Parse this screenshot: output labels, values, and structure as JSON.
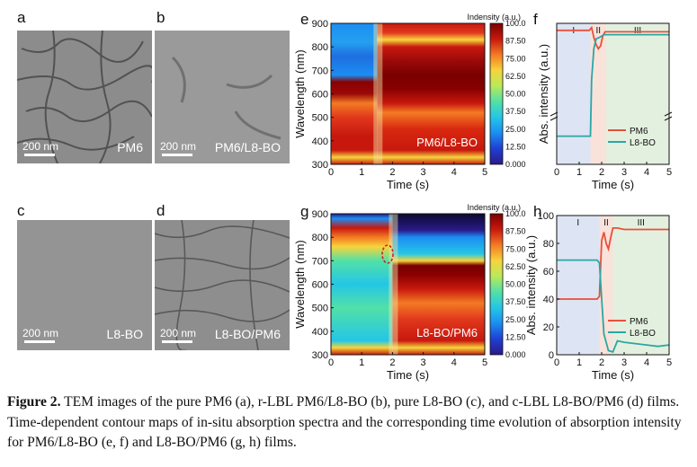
{
  "panels": {
    "a": {
      "letter": "a",
      "label": "PM6",
      "scale": "200 nm"
    },
    "b": {
      "letter": "b",
      "label": "PM6/L8-BO",
      "scale": "200 nm"
    },
    "c": {
      "letter": "c",
      "label": "L8-BO",
      "scale": "200 nm"
    },
    "d": {
      "letter": "d",
      "label": "L8-BO/PM6",
      "scale": "200 nm"
    },
    "e": {
      "letter": "e"
    },
    "f": {
      "letter": "f"
    },
    "g": {
      "letter": "g"
    },
    "h": {
      "letter": "h"
    }
  },
  "caption": {
    "figure_label": "Figure 2.",
    "text": " TEM images of the pure PM6 (a), r-LBL PM6/L8-BO (b), pure L8-BO (c), and c-LBL L8-BO/PM6 (d) films. Time-dependent contour maps of in-situ absorption spectra and the corresponding time evolution of absorption intensity for PM6/L8-BO (e, f) and L8-BO/PM6 (g, h) films."
  },
  "chart_data": [
    {
      "id": "e",
      "type": "heatmap",
      "title": "PM6/L8-BO",
      "xlabel": "Time (s)",
      "ylabel": "Wavelength (nm)",
      "xlim": [
        0,
        5
      ],
      "ylim": [
        300,
        900
      ],
      "xticks": [
        "0",
        "1",
        "2",
        "3",
        "4",
        "5"
      ],
      "yticks": [
        "300",
        "400",
        "500",
        "600",
        "700",
        "800",
        "900"
      ],
      "colorbar_label": "Indensity (a.u.)",
      "colorbar_ticks": [
        "0.000",
        "12.50",
        "25.00",
        "37.50",
        "50.00",
        "62.50",
        "75.00",
        "87.50",
        "100.0"
      ],
      "transition_time": 1.5
    },
    {
      "id": "f",
      "type": "line",
      "xlabel": "Time (s)",
      "ylabel": "Abs. intensity (a.u.)",
      "xlim": [
        0,
        5
      ],
      "xticks": [
        "0",
        "1",
        "2",
        "3",
        "4",
        "5"
      ],
      "regions": [
        {
          "label": "I",
          "start": 0,
          "end": 1.5,
          "color": "#dde4f3"
        },
        {
          "label": "II",
          "start": 1.5,
          "end": 2.2,
          "color": "#f8e2da"
        },
        {
          "label": "III",
          "start": 2.2,
          "end": 5,
          "color": "#e4f0df"
        }
      ],
      "series": [
        {
          "name": "PM6",
          "color": "#e8503a",
          "x": [
            0,
            1.45,
            1.55,
            1.65,
            1.75,
            1.85,
            1.95,
            2.05,
            2.15,
            2.4,
            3,
            4,
            5
          ],
          "y": [
            95,
            95,
            97,
            90,
            85,
            82,
            84,
            91,
            94,
            94,
            94,
            94,
            94
          ]
        },
        {
          "name": "L8-BO",
          "color": "#2aa7a5",
          "x": [
            0,
            1.5,
            1.55,
            1.65,
            1.75,
            1.9,
            2.0,
            2.1,
            2.3,
            3,
            4,
            5
          ],
          "y": [
            20,
            20,
            60,
            82,
            89,
            90,
            91,
            92,
            92,
            92,
            92,
            92
          ]
        }
      ]
    },
    {
      "id": "g",
      "type": "heatmap",
      "title": "L8-BO/PM6",
      "xlabel": "Time (s)",
      "ylabel": "Wavelength (nm)",
      "xlim": [
        0,
        5
      ],
      "ylim": [
        300,
        900
      ],
      "xticks": [
        "0",
        "1",
        "2",
        "3",
        "4",
        "5"
      ],
      "yticks": [
        "300",
        "400",
        "500",
        "600",
        "700",
        "800",
        "900"
      ],
      "colorbar_label": "Indensity (a.u.)",
      "colorbar_ticks": [
        "0.000",
        "12.50",
        "25.00",
        "37.50",
        "50.00",
        "62.50",
        "75.00",
        "87.50",
        "100.0"
      ],
      "transition_time": 2.0
    },
    {
      "id": "h",
      "type": "line",
      "xlabel": "Time (s)",
      "ylabel": "Abs. intensity (a.u.)",
      "xlim": [
        0,
        5
      ],
      "ylim": [
        0,
        100
      ],
      "xticks": [
        "0",
        "1",
        "2",
        "3",
        "4",
        "5"
      ],
      "yticks": [
        "0",
        "20",
        "40",
        "60",
        "80",
        "100"
      ],
      "regions": [
        {
          "label": "I",
          "start": 0,
          "end": 1.9,
          "color": "#dde4f3"
        },
        {
          "label": "II",
          "start": 1.9,
          "end": 2.5,
          "color": "#f8e2da"
        },
        {
          "label": "III",
          "start": 2.5,
          "end": 5,
          "color": "#e4f0df"
        }
      ],
      "series": [
        {
          "name": "PM6",
          "color": "#e8503a",
          "x": [
            0,
            1.8,
            1.9,
            2.0,
            2.1,
            2.2,
            2.3,
            2.4,
            2.5,
            2.7,
            3,
            4,
            5
          ],
          "y": [
            40,
            40,
            42,
            82,
            88,
            80,
            76,
            84,
            91,
            91,
            90,
            90,
            90
          ]
        },
        {
          "name": "L8-BO",
          "color": "#2aa7a5",
          "x": [
            0,
            1.8,
            1.9,
            2.0,
            2.1,
            2.3,
            2.5,
            2.7,
            3,
            3.5,
            4,
            4.5,
            5
          ],
          "y": [
            68,
            68,
            66,
            40,
            15,
            3,
            2,
            10,
            9,
            8,
            7,
            6,
            7
          ]
        }
      ]
    }
  ]
}
